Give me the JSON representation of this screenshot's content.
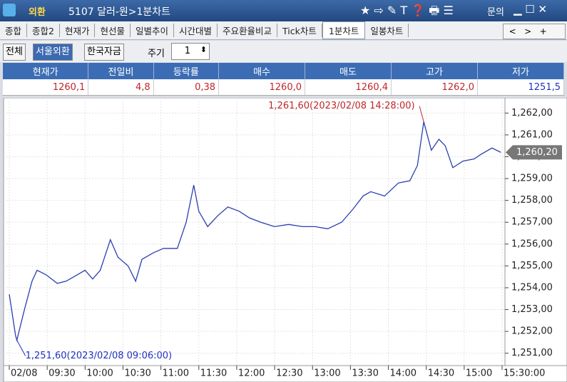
{
  "window": {
    "section": "외환",
    "title": "5107 달러-원>1분차트",
    "help": "문의"
  },
  "tabs": [
    "종합",
    "종합2",
    "현재가",
    "현선물",
    "일별추이",
    "시간대별",
    "주요환율비교",
    "Tick차트",
    "1분차트",
    "일봉차트"
  ],
  "active_tab": 8,
  "markets": [
    "전체",
    "서울외환",
    "한국자금"
  ],
  "active_market": 1,
  "period": {
    "label": "주기",
    "value": "1"
  },
  "quote": {
    "headers": [
      "현재가",
      "전일비",
      "등락률",
      "매수",
      "매도",
      "고가",
      "저가"
    ],
    "values": [
      "1260,1",
      "4,8",
      "0,38",
      "1260,0",
      "1260,4",
      "1262,0",
      "1251,5"
    ]
  },
  "chart_data": {
    "type": "line",
    "color": "#2b3fb0",
    "grid": true,
    "x": [
      "09:00",
      "09:05",
      "09:06",
      "09:12",
      "09:18",
      "09:22",
      "09:29",
      "09:38",
      "09:45",
      "09:54",
      "10:00",
      "10:06",
      "10:12",
      "10:20",
      "10:26",
      "10:34",
      "10:40",
      "10:45",
      "10:54",
      "11:02",
      "11:13",
      "11:20",
      "11:26",
      "11:30",
      "11:37",
      "11:45",
      "11:53",
      "12:02",
      "12:10",
      "12:19",
      "12:30",
      "12:41",
      "12:52",
      "13:02",
      "13:12",
      "13:23",
      "13:32",
      "13:40",
      "13:46",
      "13:57",
      "14:08",
      "14:17",
      "14:23",
      "14:28",
      "14:34",
      "14:40",
      "14:45",
      "14:51",
      "14:59",
      "15:08",
      "15:13",
      "15:22",
      "15:29"
    ],
    "values": [
      1253.7,
      1251.8,
      1251.6,
      1253,
      1254.3,
      1254.8,
      1254.6,
      1254.2,
      1254.3,
      1254.6,
      1254.8,
      1254.4,
      1254.8,
      1256.2,
      1255.4,
      1255,
      1254.3,
      1255.3,
      1255.6,
      1255.8,
      1255.8,
      1257,
      1258.7,
      1257.5,
      1256.8,
      1257.3,
      1257.7,
      1257.5,
      1257.2,
      1257,
      1256.8,
      1256.9,
      1256.8,
      1256.8,
      1256.7,
      1257,
      1257.6,
      1258.2,
      1258.4,
      1258.2,
      1258.8,
      1258.9,
      1259.6,
      1261.6,
      1260.3,
      1260.8,
      1260.5,
      1259.5,
      1259.8,
      1259.9,
      1260.1,
      1260.4,
      1260.2
    ],
    "xlim": [
      "09:00",
      "15:30"
    ],
    "xticks": [
      {
        "value": "09:00",
        "label": "02/08"
      },
      "09:30",
      "10:00",
      "10:30",
      "11:00",
      "11:30",
      "12:00",
      "12:30",
      "13:00",
      "13:30",
      "14:00",
      "14:30",
      "15:00",
      {
        "value": "15:30",
        "label": "15:30:00"
      }
    ],
    "ylim": [
      1250.5,
      1262.6
    ],
    "yticks": [
      {
        "value": 1251,
        "label": "1,251,00"
      },
      {
        "value": 1252,
        "label": "1,252,00"
      },
      {
        "value": 1253,
        "label": "1,253,00"
      },
      {
        "value": 1254,
        "label": "1,254,00"
      },
      {
        "value": 1255,
        "label": "1,255,00"
      },
      {
        "value": 1256,
        "label": "1,256,00"
      },
      {
        "value": 1257,
        "label": "1,257,00"
      },
      {
        "value": 1258,
        "label": "1,258,00"
      },
      {
        "value": 1259,
        "label": "1,259,00"
      },
      {
        "value": 1260,
        "label": "1,260,00"
      },
      {
        "value": 1261,
        "label": "1,261,00"
      },
      {
        "value": 1262,
        "label": "1,262,00"
      }
    ],
    "current": {
      "value": 1260.2,
      "label": "1,260,20"
    },
    "annotations": [
      {
        "x": "14:28",
        "value": 1261.6,
        "label": "1,261,60(2023/02/08 14:28:00)",
        "color": "#c0262a"
      },
      {
        "x": "09:06",
        "value": 1251.6,
        "label": "1,251,60(2023/02/08 09:06:00)",
        "color": "#2030c0"
      }
    ]
  }
}
